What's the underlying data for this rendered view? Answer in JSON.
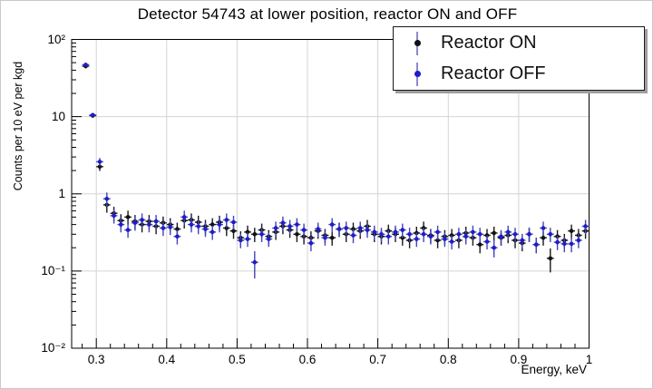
{
  "window": {
    "background": "#ffffff",
    "border_color": "#c9c9c9"
  },
  "chart_data": {
    "type": "scatter",
    "title": "Detector 54743 at lower position, reactor ON and OFF",
    "xlabel": "Energy, keV",
    "ylabel": "Counts per 10 eV per kgd",
    "x_scale": "linear",
    "y_scale": "log",
    "xlim": [
      0.265,
      1.0
    ],
    "ylim": [
      0.01,
      100
    ],
    "grid": true,
    "legend_position": "top-right",
    "x_tick_values": [
      0.3,
      0.4,
      0.5,
      0.6,
      0.7,
      0.8,
      0.9,
      1.0
    ],
    "x_tick_labels": [
      "0.3",
      "0.4",
      "0.5",
      "0.6",
      "0.7",
      "0.8",
      "0.9",
      "1"
    ],
    "x_minor_tick_step": 0.02,
    "y_tick_values": [
      100,
      10,
      1,
      0.1,
      0.01
    ],
    "y_tick_labels": [
      "10²",
      "10",
      "1",
      "10⁻¹",
      "10⁻²"
    ],
    "grid_color": "#d4d4d4",
    "frame_color": "#000000",
    "legend_errorbar_color": "#8a8ad2",
    "bin_width_kev": 0.01,
    "x": [
      0.285,
      0.295,
      0.305,
      0.315,
      0.325,
      0.335,
      0.345,
      0.355,
      0.365,
      0.375,
      0.385,
      0.395,
      0.405,
      0.415,
      0.425,
      0.435,
      0.445,
      0.455,
      0.465,
      0.475,
      0.485,
      0.495,
      0.505,
      0.515,
      0.525,
      0.535,
      0.545,
      0.555,
      0.565,
      0.575,
      0.585,
      0.595,
      0.605,
      0.615,
      0.625,
      0.635,
      0.645,
      0.655,
      0.665,
      0.675,
      0.685,
      0.695,
      0.705,
      0.715,
      0.725,
      0.735,
      0.745,
      0.755,
      0.765,
      0.775,
      0.785,
      0.795,
      0.805,
      0.815,
      0.825,
      0.835,
      0.845,
      0.855,
      0.865,
      0.875,
      0.885,
      0.895,
      0.905,
      0.915,
      0.925,
      0.935,
      0.945,
      0.955,
      0.965,
      0.975,
      0.985,
      0.995
    ],
    "series": [
      {
        "name": "Reactor ON",
        "marker_color": "#111111",
        "line_color": "#1a1a1a",
        "values": [
          45,
          10.3,
          2.25,
          0.72,
          0.56,
          0.45,
          0.5,
          0.44,
          0.4,
          0.44,
          0.38,
          0.42,
          0.4,
          0.35,
          0.45,
          0.46,
          0.43,
          0.38,
          0.4,
          0.43,
          0.36,
          0.33,
          0.27,
          0.32,
          0.3,
          0.34,
          0.28,
          0.32,
          0.38,
          0.34,
          0.3,
          0.28,
          0.27,
          0.33,
          0.29,
          0.27,
          0.35,
          0.3,
          0.35,
          0.33,
          0.38,
          0.3,
          0.28,
          0.33,
          0.3,
          0.27,
          0.25,
          0.31,
          0.36,
          0.29,
          0.25,
          0.28,
          0.29,
          0.25,
          0.31,
          0.27,
          0.22,
          0.29,
          0.31,
          0.27,
          0.29,
          0.25,
          0.23,
          0.3,
          0.22,
          0.27,
          0.146,
          0.28,
          0.25,
          0.33,
          0.29,
          0.33
        ],
        "errors": [
          2.7,
          0.618,
          0.27,
          0.151,
          0.118,
          0.095,
          0.105,
          0.092,
          0.084,
          0.092,
          0.08,
          0.088,
          0.084,
          0.074,
          0.095,
          0.097,
          0.09,
          0.08,
          0.084,
          0.09,
          0.076,
          0.069,
          0.057,
          0.067,
          0.063,
          0.071,
          0.059,
          0.067,
          0.08,
          0.071,
          0.063,
          0.059,
          0.057,
          0.069,
          0.061,
          0.057,
          0.074,
          0.063,
          0.074,
          0.069,
          0.08,
          0.063,
          0.059,
          0.069,
          0.063,
          0.057,
          0.053,
          0.065,
          0.076,
          0.061,
          0.053,
          0.059,
          0.061,
          0.053,
          0.065,
          0.057,
          0.05,
          0.061,
          0.065,
          0.057,
          0.061,
          0.053,
          0.05,
          0.063,
          0.05,
          0.057,
          0.05,
          0.059,
          0.053,
          0.069,
          0.061,
          0.069
        ]
      },
      {
        "name": "Reactor OFF",
        "marker_color": "#1d1dc9",
        "line_color": "#4343bd",
        "values": [
          47,
          10.5,
          2.6,
          0.86,
          0.52,
          0.4,
          0.34,
          0.42,
          0.46,
          0.4,
          0.44,
          0.36,
          0.37,
          0.28,
          0.5,
          0.4,
          0.38,
          0.35,
          0.32,
          0.4,
          0.46,
          0.43,
          0.25,
          0.26,
          0.13,
          0.3,
          0.26,
          0.36,
          0.42,
          0.38,
          0.4,
          0.34,
          0.23,
          0.35,
          0.27,
          0.4,
          0.35,
          0.36,
          0.29,
          0.36,
          0.34,
          0.32,
          0.3,
          0.28,
          0.32,
          0.34,
          0.3,
          0.26,
          0.3,
          0.28,
          0.32,
          0.26,
          0.24,
          0.3,
          0.28,
          0.32,
          0.3,
          0.24,
          0.2,
          0.28,
          0.32,
          0.3,
          0.25,
          0.3,
          0.22,
          0.36,
          0.3,
          0.236,
          0.225,
          0.225,
          0.25,
          0.38
        ],
        "errors": [
          2.82,
          0.63,
          0.312,
          0.181,
          0.109,
          0.084,
          0.071,
          0.088,
          0.097,
          0.084,
          0.092,
          0.076,
          0.078,
          0.059,
          0.105,
          0.084,
          0.08,
          0.074,
          0.067,
          0.084,
          0.097,
          0.09,
          0.053,
          0.055,
          0.05,
          0.063,
          0.055,
          0.076,
          0.088,
          0.08,
          0.084,
          0.071,
          0.05,
          0.074,
          0.057,
          0.084,
          0.074,
          0.076,
          0.061,
          0.076,
          0.071,
          0.067,
          0.063,
          0.059,
          0.067,
          0.071,
          0.063,
          0.055,
          0.063,
          0.059,
          0.067,
          0.055,
          0.05,
          0.063,
          0.059,
          0.067,
          0.063,
          0.05,
          0.05,
          0.059,
          0.067,
          0.063,
          0.053,
          0.063,
          0.05,
          0.076,
          0.063,
          0.05,
          0.05,
          0.05,
          0.053,
          0.08
        ]
      }
    ]
  }
}
